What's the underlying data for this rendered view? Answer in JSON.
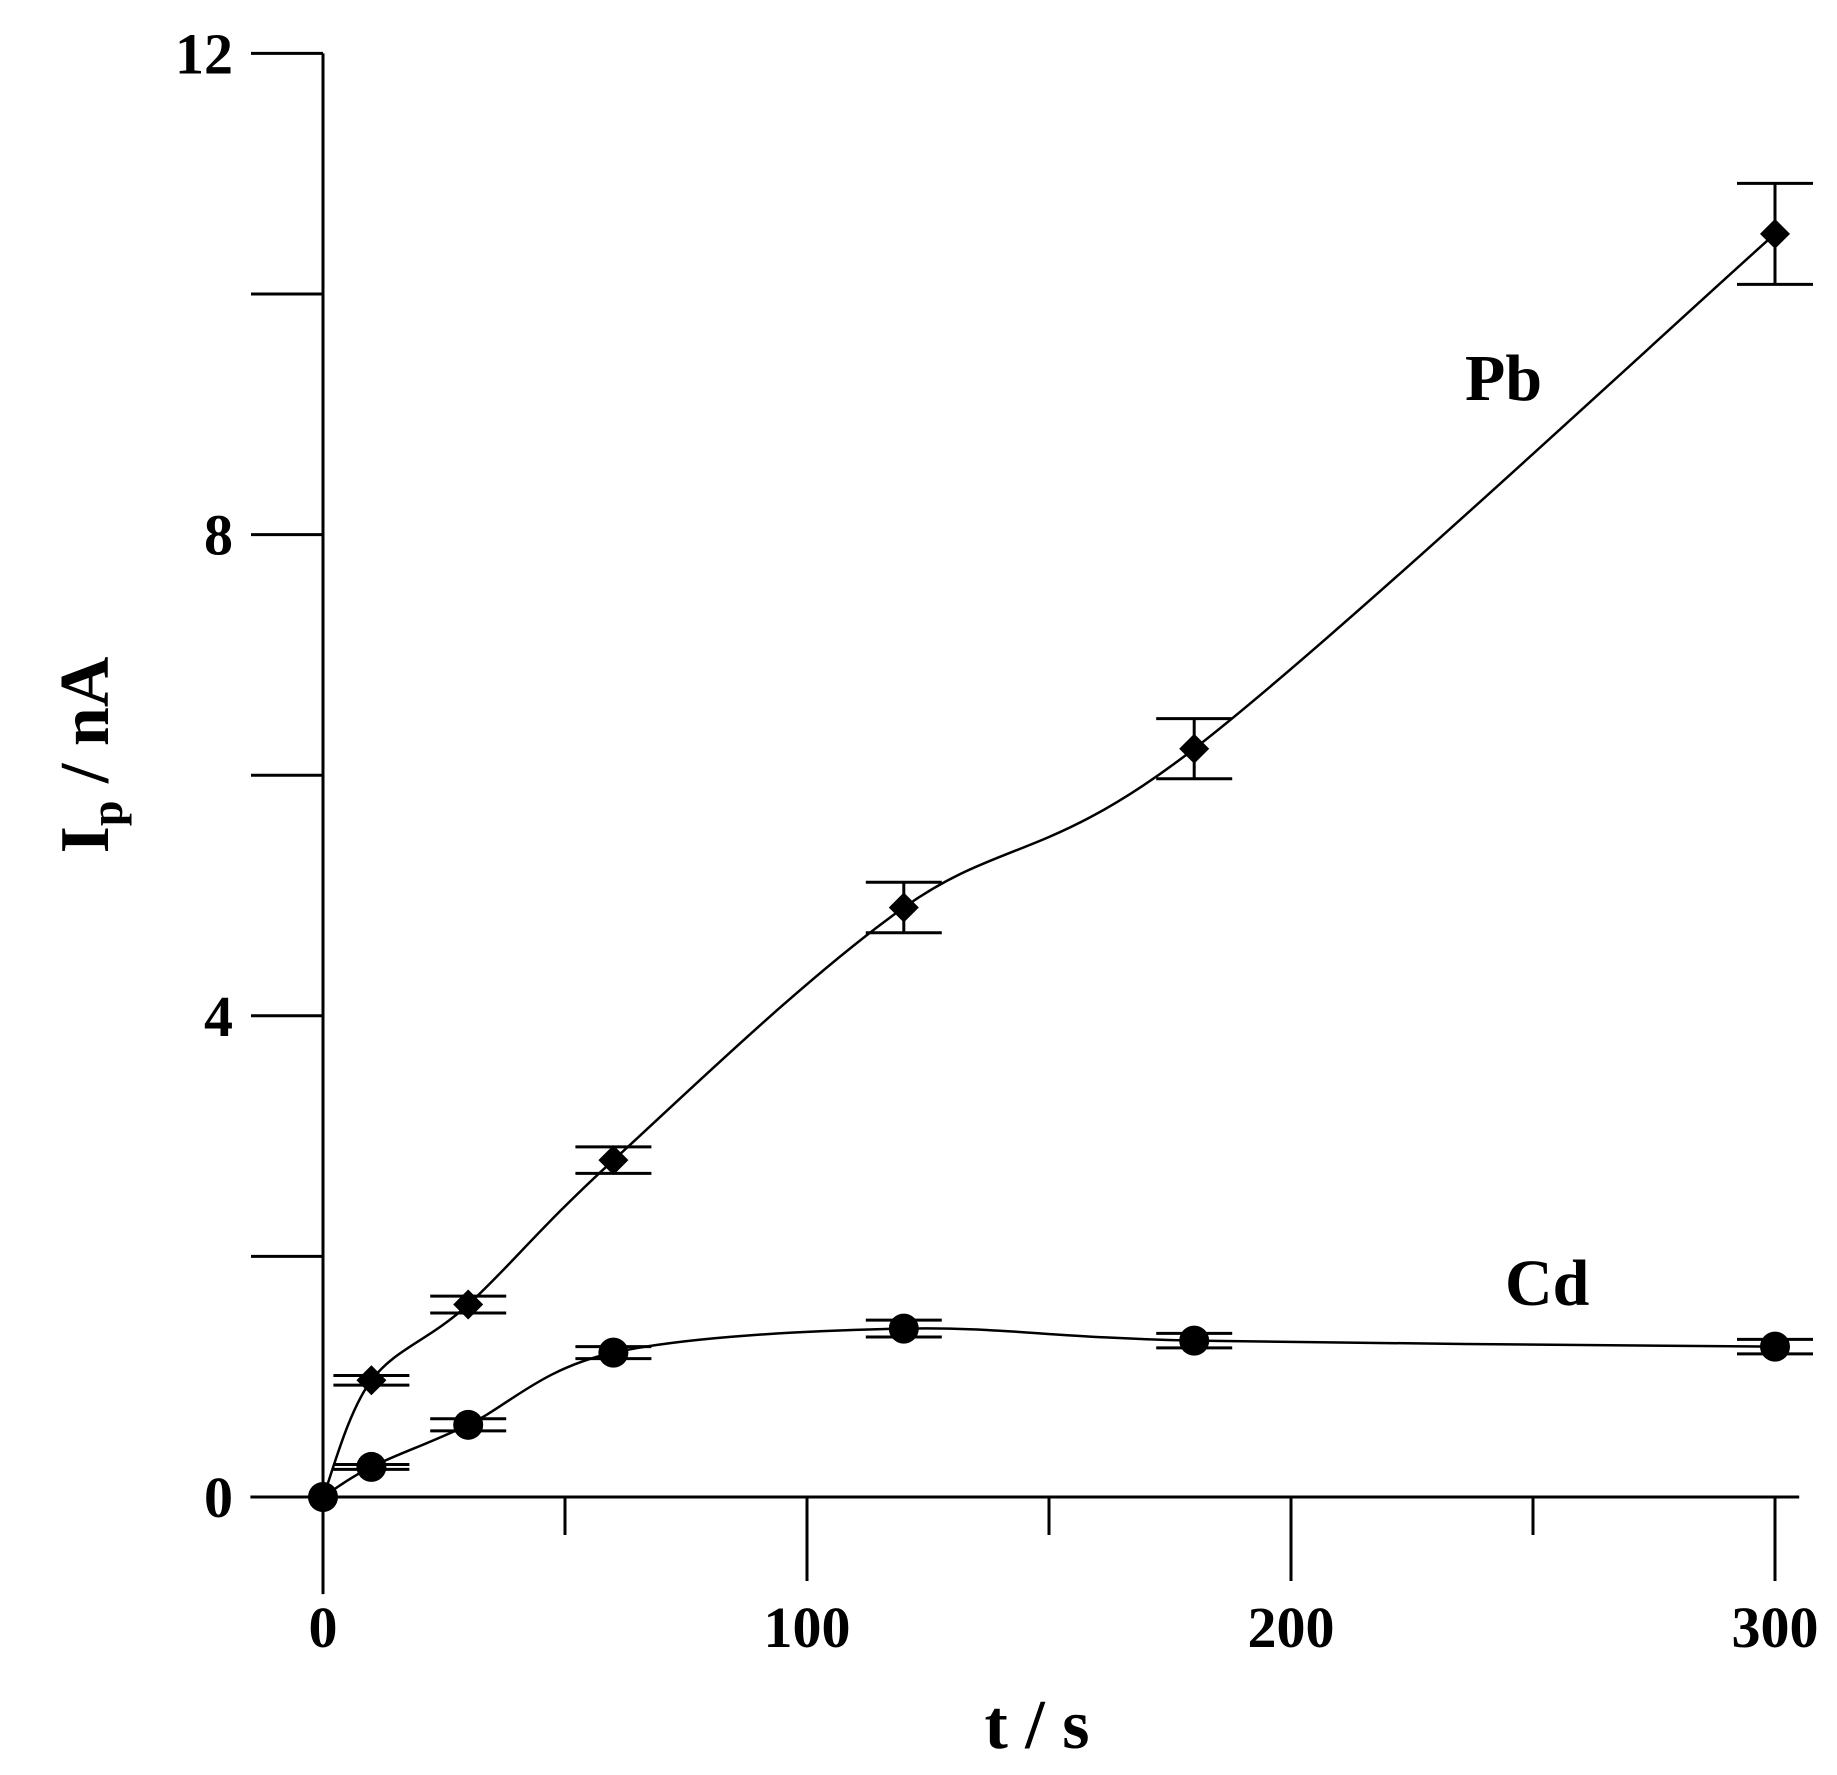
{
  "chart_data": {
    "type": "scatter",
    "title": "",
    "xlabel": "t / s",
    "ylabel": {
      "main": "I",
      "subscript": "p",
      "rest": " / nA"
    },
    "xlim": [
      -15,
      305
    ],
    "ylim": [
      -0.6,
      12
    ],
    "x_ticks_major": [
      0,
      100,
      200,
      300
    ],
    "x_ticks_minor": [
      50,
      150,
      250
    ],
    "y_ticks_major": [
      0,
      4,
      8,
      12
    ],
    "y_ticks_minor": [
      2,
      6,
      10
    ],
    "x_tick_labels": [
      "0",
      "100",
      "200",
      "300"
    ],
    "y_tick_labels": [
      "0",
      "4",
      "8",
      "12"
    ],
    "grid": false,
    "legend": "none",
    "series": [
      {
        "name": "Pb",
        "marker": "diamond",
        "x": [
          0,
          10,
          30,
          60,
          120,
          180,
          300
        ],
        "y": [
          0,
          0.97,
          1.6,
          2.8,
          4.9,
          6.22,
          10.5
        ],
        "error": [
          0,
          0.04,
          0.07,
          0.11,
          0.21,
          0.25,
          0.42
        ]
      },
      {
        "name": "Cd",
        "marker": "circle",
        "x": [
          0,
          10,
          30,
          60,
          120,
          180,
          300
        ],
        "y": [
          0,
          0.25,
          0.6,
          1.2,
          1.4,
          1.3,
          1.25
        ],
        "error": [
          0,
          0.02,
          0.05,
          0.05,
          0.07,
          0.06,
          0.06
        ]
      }
    ]
  }
}
